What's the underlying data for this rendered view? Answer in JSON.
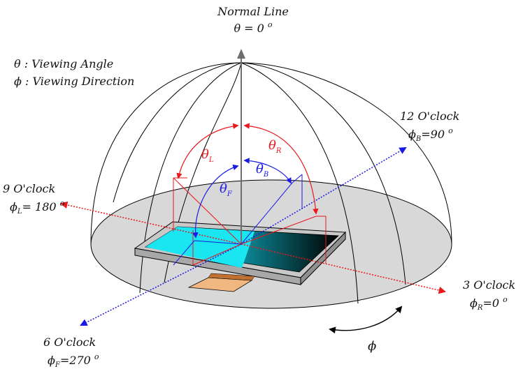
{
  "normal": {
    "title": "Normal Line",
    "theta_prefix": "θ = 0 ",
    "degree": "o"
  },
  "legend": {
    "theta_symbol": "θ",
    "theta_text": " : Viewing Angle",
    "phi_symbol": "ϕ",
    "phi_text": " : Viewing Direction"
  },
  "directions": {
    "twelve": {
      "clock": "12 O'clock",
      "phi": "ϕ",
      "sub": "B",
      "value": "=90 ",
      "degree": "o"
    },
    "nine": {
      "clock": "9 O'clock",
      "phi": "ϕ",
      "sub": "L",
      "value": "= 180 ",
      "degree": "o"
    },
    "three": {
      "clock": "3 O'clock",
      "phi": "ϕ",
      "sub": "R",
      "value": "=0 ",
      "degree": "o"
    },
    "six": {
      "clock": "6 O'clock",
      "phi": "ϕ",
      "sub": "F",
      "value": "=270 ",
      "degree": "o"
    }
  },
  "angles": {
    "theta_l": {
      "symbol": "θ",
      "sub": "L"
    },
    "theta_r": {
      "symbol": "θ",
      "sub": "R"
    },
    "theta_b": {
      "symbol": "θ",
      "sub": "B"
    },
    "theta_f": {
      "symbol": "θ",
      "sub": "F"
    },
    "phi": "ϕ"
  },
  "colors": {
    "red": "#e8191c",
    "blue": "#1a1ae6",
    "cyan": "#19e6f0",
    "ellipse": "#d8d8d8",
    "panel": "#c8c8c8",
    "connector": "#f0b880",
    "axis": "#6e6e6e"
  }
}
